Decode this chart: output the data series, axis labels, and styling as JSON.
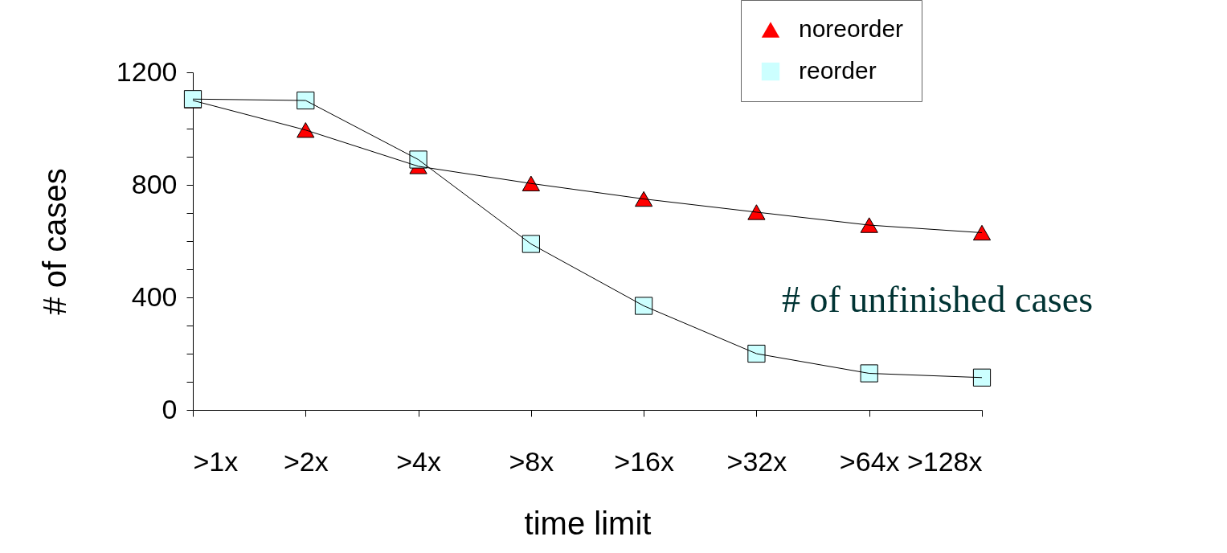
{
  "chart_data": {
    "type": "line",
    "xlabel": "time limit",
    "ylabel": "# of cases",
    "annotations": [
      "# of unfinished cases"
    ],
    "categories": [
      ">1x",
      ">2x",
      ">4x",
      ">8x",
      ">16x",
      ">32x",
      ">64x",
      ">128x"
    ],
    "series": [
      {
        "name": "noreorder",
        "color": "#ff0000",
        "marker": "triangle",
        "values": [
          1100,
          995,
          866,
          805,
          750,
          703,
          657,
          630
        ]
      },
      {
        "name": "reorder",
        "color": "#ccffff",
        "marker": "square",
        "values": [
          1105,
          1100,
          890,
          590,
          370,
          200,
          130,
          115
        ]
      }
    ],
    "ylim": [
      0,
      1200
    ],
    "yticks": [
      0,
      {
        "value": 100,
        "label": null
      },
      {
        "value": 200,
        "label": null
      },
      {
        "value": 300,
        "label": null
      },
      400,
      {
        "value": 500,
        "label": null
      },
      {
        "value": 600,
        "label": null
      },
      {
        "value": 700,
        "label": null
      },
      800,
      {
        "value": 900,
        "label": null
      },
      {
        "value": 1000,
        "label": null
      },
      {
        "value": 1100,
        "label": null
      },
      1200
    ],
    "grid": false,
    "legend": "top right"
  }
}
